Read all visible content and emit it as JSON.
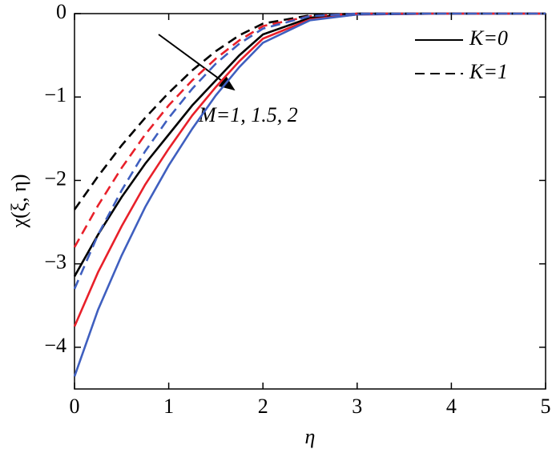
{
  "chart_data": {
    "type": "line",
    "x_label": "η",
    "y_label": "χ(ξ, η)",
    "annotation": "M=1, 1.5, 2",
    "x": [
      0,
      0.25,
      0.5,
      0.75,
      1,
      1.25,
      1.5,
      1.75,
      2,
      2.5,
      3,
      4,
      5
    ],
    "series": [
      {
        "color": "#000000",
        "dash": false,
        "values": [
          -3.15,
          -2.65,
          -2.2,
          -1.8,
          -1.45,
          -1.1,
          -0.8,
          -0.5,
          -0.25,
          -0.05,
          0,
          0,
          0
        ]
      },
      {
        "color": "#e8202a",
        "dash": false,
        "values": [
          -3.75,
          -3.1,
          -2.55,
          -2.05,
          -1.62,
          -1.22,
          -0.88,
          -0.57,
          -0.3,
          -0.07,
          -0.01,
          0,
          0
        ]
      },
      {
        "color": "#3f5fbf",
        "dash": false,
        "values": [
          -4.35,
          -3.55,
          -2.9,
          -2.32,
          -1.82,
          -1.38,
          -0.98,
          -0.64,
          -0.35,
          -0.08,
          -0.01,
          0,
          0
        ]
      },
      {
        "color": "#000000",
        "dash": true,
        "values": [
          -2.35,
          -1.95,
          -1.58,
          -1.25,
          -0.95,
          -0.68,
          -0.45,
          -0.26,
          -0.12,
          -0.02,
          0,
          0,
          0
        ]
      },
      {
        "color": "#e8202a",
        "dash": true,
        "values": [
          -2.8,
          -2.3,
          -1.85,
          -1.45,
          -1.1,
          -0.8,
          -0.54,
          -0.32,
          -0.15,
          -0.03,
          0,
          0,
          0
        ]
      },
      {
        "color": "#3f5fbf",
        "dash": true,
        "values": [
          -3.3,
          -2.65,
          -2.12,
          -1.65,
          -1.25,
          -0.9,
          -0.6,
          -0.36,
          -0.18,
          -0.03,
          0,
          0,
          0
        ]
      }
    ],
    "legend": [
      {
        "label": "K=0",
        "dash": false
      },
      {
        "label": "K=1",
        "dash": true
      }
    ],
    "xlim": [
      0,
      5
    ],
    "xticks": [
      0,
      1,
      2,
      3,
      4,
      5
    ],
    "ylim": [
      -4.5,
      0
    ],
    "yticks": [
      {
        "value": -4,
        "label": "−4"
      },
      {
        "value": -3,
        "label": "−3"
      },
      {
        "value": -2,
        "label": "−2"
      },
      {
        "value": -1,
        "label": "−1"
      },
      0
    ]
  }
}
